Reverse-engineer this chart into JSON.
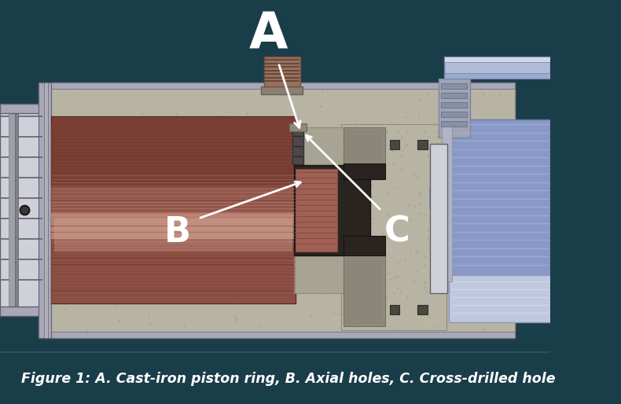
{
  "bg_color": "#1a3d4a",
  "caption_bg_color": "#1a3d4a",
  "caption_text": "Figure 1: A. Cast-iron piston ring, B. Axial holes, C. Cross-drilled hole",
  "caption_color": "white",
  "caption_fontsize": 12.5,
  "caption_fontstyle": "italic",
  "fig_width": 7.9,
  "fig_height": 5.14,
  "label_A": "A",
  "label_B": "B",
  "label_C": "C",
  "label_color": "white",
  "label_fontsize_A": 46,
  "label_fontsize_BC": 32,
  "arrow_color": "white",
  "concrete_color": "#b8b4a4",
  "concrete_dark": "#908c7c",
  "concrete_inner": "#a8a494",
  "piston_dark": "#7a4035",
  "piston_mid": "#a06055",
  "piston_light": "#c89080",
  "piston_highlight": "#d4a898",
  "metal_light": "#d0d0d8",
  "metal_mid": "#a8a8b8",
  "metal_dark": "#606070",
  "blue_main": "#8898c8",
  "blue_light": "#b0bcd8",
  "blue_dark": "#6878a8",
  "ring_color": "#504848",
  "ring_light": "#706868",
  "dark_hole": "#2a2420",
  "dot_color1": "#a0a080",
  "dot_color2": "#c8c4a0",
  "top_component_bg": "#606870",
  "top_ring_color": "#885548"
}
